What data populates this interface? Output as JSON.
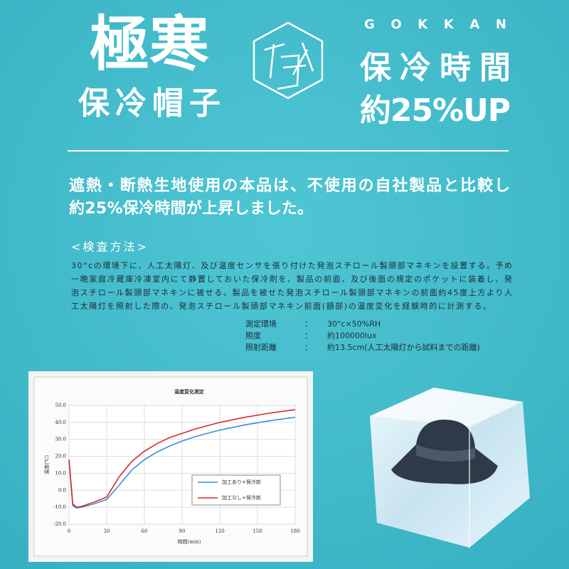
{
  "header": {
    "title": "極寒",
    "subtitle": "保冷帽子",
    "brand": "GOKKAN",
    "claim_1": "保冷時間",
    "claim_2": "約25%UP"
  },
  "lead": [
    "遮熱・断熱生地使用の本品は、不使用の自社製品と比較し",
    "約25%保冷時間が上昇しました。"
  ],
  "method": {
    "heading": "<検査方法>",
    "lines": [
      "30°cの環境下に、人工太陽灯、及び温度センサを張り付けた発泡スチロール製頭部マネキンを設置する。予め",
      "一晩家庭冷蔵庫冷凍室内にて静置しておいた保冷剤を、製品の前面、及び後面の規定のポケットに装着し、発",
      "泡スチロール製頭部マネキンに被せる。製品を被せた発泡スチロール製頭部マネキンの前面約45度上方より人",
      "工太陽灯を照射した際の、発泡スチロール製頭部マネキン前面(額部)の温度変化を経験時的に計測する。"
    ],
    "conditions": [
      [
        "測定環境",
        "：",
        "30°c×50%RH"
      ],
      [
        "照度",
        "：",
        "約100000lux"
      ],
      [
        "照射距離",
        "：",
        "約13.5cm(人工太陽灯から試料までの距離)"
      ]
    ]
  },
  "chart_data": {
    "type": "line",
    "title": "温度変化測定",
    "x_label": "時間(min)",
    "y_label": "温度(℃)",
    "x": [
      0,
      3,
      6,
      10,
      20,
      30,
      40,
      50,
      60,
      70,
      80,
      90,
      100,
      120,
      140,
      160,
      180
    ],
    "series": [
      {
        "name": "加工あり+保冷剤",
        "color": "#3a8fd6",
        "values": [
          18,
          -9,
          -10.5,
          -10,
          -8,
          -5.5,
          3,
          12,
          18,
          22.5,
          26,
          29,
          31.5,
          35.5,
          38.5,
          41,
          43
        ]
      },
      {
        "name": "加工なし+保冷剤",
        "color": "#d62a2a",
        "values": [
          18,
          -8,
          -10,
          -9.5,
          -7,
          -4,
          8,
          17,
          23,
          27.5,
          31,
          33.5,
          36,
          40,
          43,
          45.5,
          47.5
        ]
      }
    ],
    "xlim": [
      0,
      180
    ],
    "xticks": [
      0,
      30,
      60,
      90,
      120,
      150,
      180
    ],
    "ylim": [
      -20,
      50
    ],
    "yticks": [
      {
        "value": 50,
        "label": "50.0"
      },
      {
        "value": 40,
        "label": "40.0"
      },
      {
        "value": 30,
        "label": "30.0"
      },
      {
        "value": 20,
        "label": "20.0"
      },
      {
        "value": 10,
        "label": "10.0"
      },
      {
        "value": 0,
        "label": "0.0"
      },
      {
        "value": -10,
        "label": "-10.0"
      },
      {
        "value": -20,
        "label": "-20.0"
      }
    ],
    "grid": true
  }
}
